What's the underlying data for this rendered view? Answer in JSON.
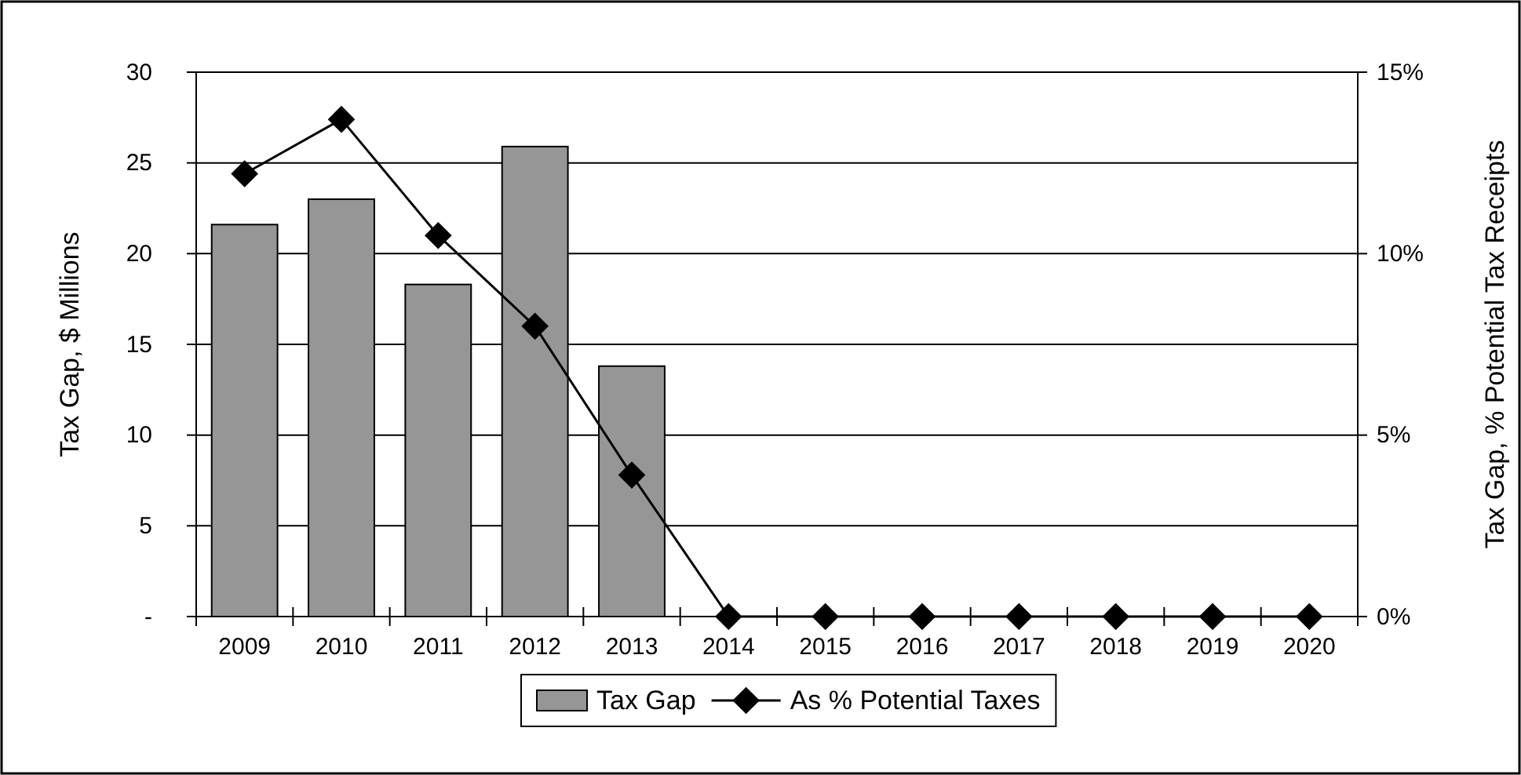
{
  "chart_data": {
    "type": "bar",
    "categories": [
      "2009",
      "2010",
      "2011",
      "2012",
      "2013",
      "2014",
      "2015",
      "2016",
      "2017",
      "2018",
      "2019",
      "2020"
    ],
    "series": [
      {
        "name": "Tax Gap",
        "color": "#969696",
        "values": [
          21.6,
          23.0,
          18.3,
          25.9,
          13.8,
          null,
          null,
          null,
          null,
          null,
          null,
          null
        ]
      },
      {
        "name": "As % Potential Taxes",
        "type": "line",
        "axis": "y2",
        "color": "#000000",
        "marker": "diamond",
        "values": [
          12.2,
          13.7,
          10.5,
          8.0,
          3.9,
          0,
          0,
          0,
          0,
          0,
          0,
          0
        ]
      }
    ],
    "ylabel": "Tax Gap, $ Millions",
    "y2label": "Tax Gap, % Potential Tax Receipts",
    "ylim": [
      0,
      30
    ],
    "yticks": [
      {
        "value": 0,
        "label": "-"
      },
      5,
      10,
      15,
      20,
      25,
      30
    ],
    "y2lim": [
      0,
      15
    ],
    "y2ticks": [
      {
        "value": 0,
        "label": "0%"
      },
      {
        "value": 5,
        "label": "5%"
      },
      {
        "value": 10,
        "label": "10%"
      },
      {
        "value": 15,
        "label": "15%"
      }
    ],
    "grid": "y",
    "legend": "bottom"
  }
}
